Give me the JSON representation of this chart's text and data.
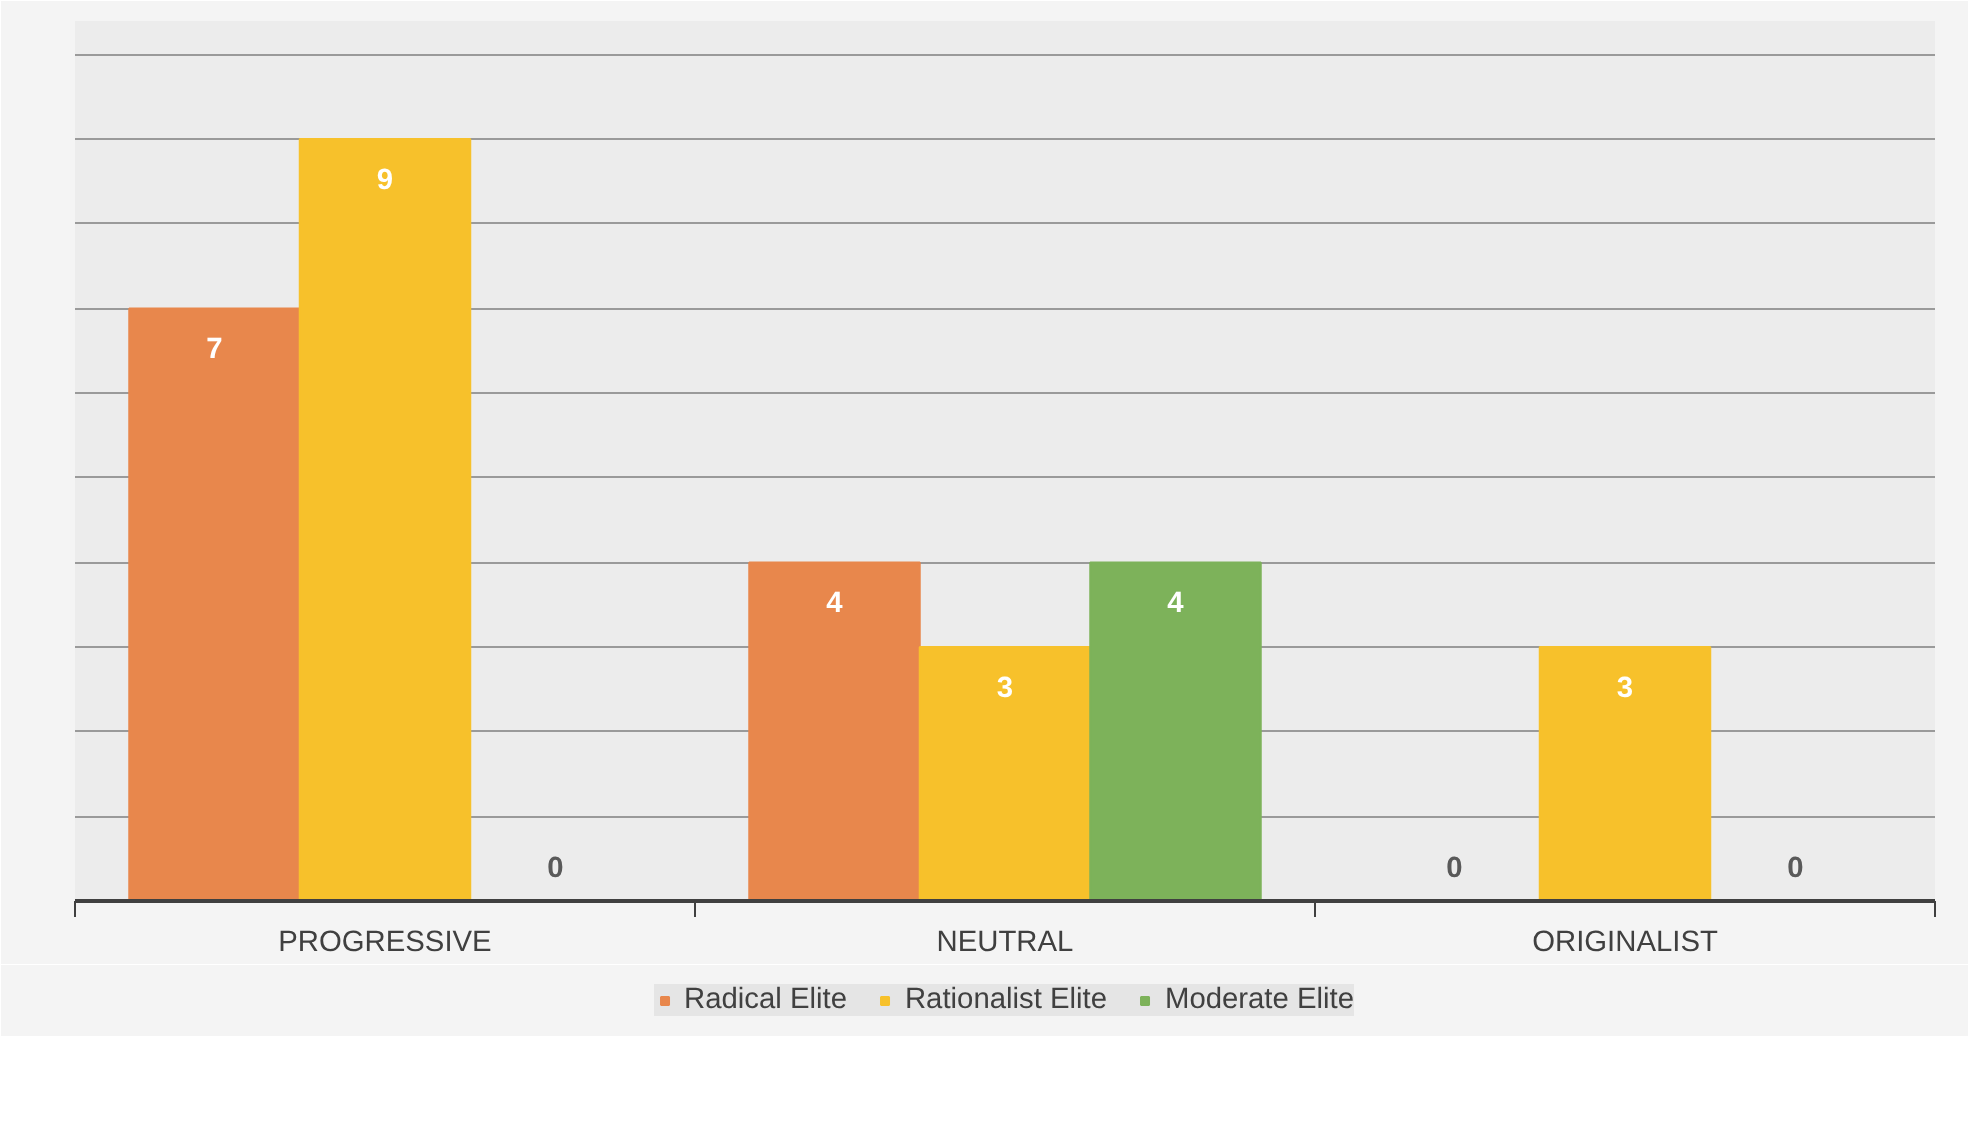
{
  "chart_data": {
    "type": "bar",
    "categories": [
      "PROGRESSIVE",
      "NEUTRAL",
      "ORIGINALIST"
    ],
    "series": [
      {
        "name": "Radical Elite",
        "color": "#e8874c",
        "values": [
          7,
          4,
          0
        ]
      },
      {
        "name": "Rationalist Elite",
        "color": "#f7c12b",
        "values": [
          9,
          3,
          3
        ]
      },
      {
        "name": "Moderate Elite",
        "color": "#7db25a",
        "values": [
          0,
          4,
          0
        ]
      }
    ],
    "tick_labels": "x",
    "grid": "y",
    "data_labels": true,
    "legend": "bottom"
  }
}
